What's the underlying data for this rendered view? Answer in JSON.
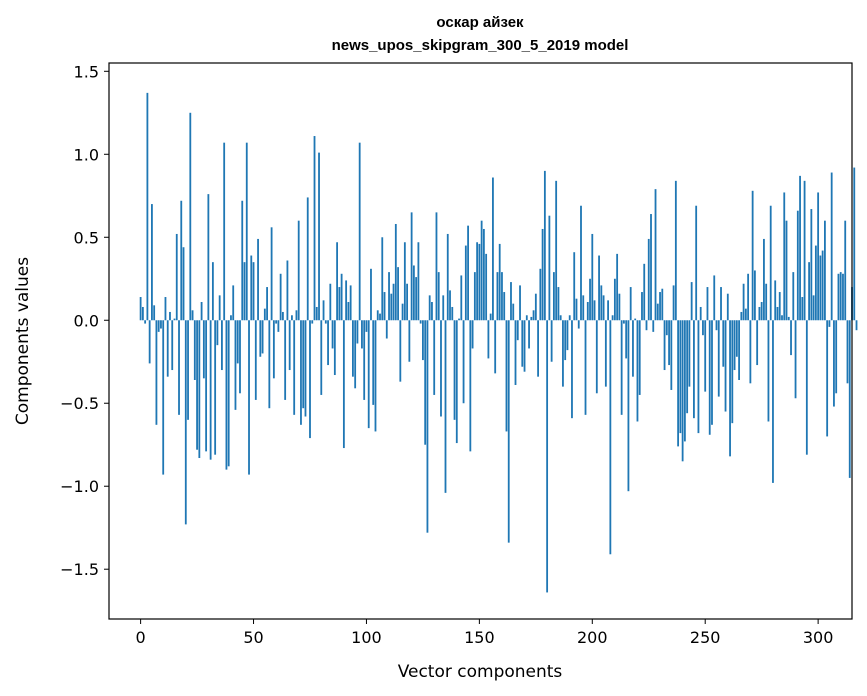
{
  "chart_data": {
    "type": "bar",
    "title_line1": "оскар айзек",
    "title_line2": "news_upos_skipgram_300_5_2019 model",
    "xlabel": "Vector components",
    "ylabel": "Components values",
    "xlim": [
      -14,
      315
    ],
    "ylim": [
      -1.8,
      1.55
    ],
    "x_ticks": [
      0,
      50,
      100,
      150,
      200,
      250,
      300
    ],
    "y_ticks": [
      -1.5,
      -1.0,
      -0.5,
      0.0,
      0.5,
      1.0,
      1.5
    ],
    "y_tick_labels": [
      "−1.5",
      "−1.0",
      "−0.5",
      "0.0",
      "0.5",
      "1.0",
      "1.5"
    ],
    "grid": false,
    "bar_color": "#1f77b4",
    "values": [
      0.14,
      0.08,
      -0.02,
      1.37,
      -0.26,
      0.7,
      0.09,
      -0.63,
      -0.07,
      -0.05,
      -0.93,
      0.14,
      -0.34,
      0.05,
      -0.3,
      0.01,
      0.52,
      -0.57,
      0.72,
      0.44,
      -1.23,
      -0.6,
      1.25,
      0.06,
      -0.36,
      -0.78,
      -0.83,
      0.11,
      -0.35,
      -0.79,
      0.76,
      -0.84,
      0.35,
      -0.81,
      -0.15,
      0.15,
      -0.3,
      1.07,
      -0.9,
      -0.88,
      0.03,
      0.21,
      -0.54,
      -0.26,
      -0.44,
      0.72,
      0.35,
      1.07,
      -0.93,
      0.39,
      0.35,
      -0.48,
      0.49,
      -0.22,
      -0.2,
      0.07,
      0.2,
      -0.53,
      0.56,
      -0.35,
      -0.02,
      -0.07,
      0.28,
      0.05,
      -0.48,
      0.36,
      -0.3,
      0.03,
      -0.57,
      0.06,
      0.6,
      -0.63,
      -0.53,
      -0.58,
      0.74,
      -0.71,
      -0.02,
      1.11,
      0.08,
      1.01,
      -0.45,
      0.12,
      -0.02,
      -0.27,
      0.22,
      -0.17,
      -0.33,
      0.47,
      0.2,
      0.28,
      -0.77,
      0.24,
      0.11,
      0.21,
      -0.34,
      -0.41,
      -0.14,
      1.07,
      -0.17,
      -0.48,
      -0.07,
      -0.65,
      0.31,
      -0.51,
      -0.67,
      0.06,
      0.04,
      0.5,
      0.17,
      -0.11,
      0.29,
      0.16,
      0.22,
      0.58,
      0.32,
      -0.37,
      0.1,
      0.47,
      0.22,
      -0.25,
      0.65,
      0.33,
      0.26,
      0.47,
      -0.02,
      -0.24,
      -0.75,
      -1.28,
      0.15,
      0.11,
      -0.45,
      0.65,
      0.29,
      -0.58,
      0.15,
      -1.04,
      0.52,
      0.18,
      0.08,
      -0.6,
      -0.74,
      0.01,
      0.27,
      -0.5,
      0.45,
      0.57,
      -0.79,
      -0.17,
      0.29,
      0.47,
      0.46,
      0.6,
      0.55,
      0.4,
      -0.23,
      0.04,
      0.86,
      -0.32,
      0.29,
      0.46,
      0.29,
      0.17,
      -0.67,
      -1.34,
      0.23,
      0.1,
      -0.39,
      -0.12,
      0.21,
      -0.28,
      -0.31,
      0.03,
      -0.17,
      0.02,
      0.06,
      0.16,
      -0.34,
      0.31,
      0.55,
      0.9,
      -1.64,
      0.63,
      -0.25,
      0.29,
      0.84,
      0.2,
      0.03,
      -0.4,
      -0.24,
      -0.18,
      0.03,
      -0.59,
      0.41,
      0.13,
      -0.05,
      0.69,
      0.15,
      -0.57,
      0.11,
      0.25,
      0.52,
      0.12,
      -0.44,
      0.39,
      0.21,
      0.15,
      -0.4,
      0.12,
      -1.41,
      0.03,
      0.25,
      0.4,
      0.16,
      -0.57,
      -0.02,
      -0.23,
      -1.03,
      0.2,
      -0.34,
      0.01,
      -0.61,
      -0.45,
      0.17,
      0.34,
      -0.06,
      0.49,
      0.64,
      -0.07,
      0.79,
      0.1,
      0.17,
      0.19,
      -0.3,
      -0.09,
      -0.27,
      -0.42,
      0.21,
      0.84,
      -0.76,
      -0.68,
      -0.85,
      -0.73,
      -0.56,
      -0.4,
      0.23,
      -0.59,
      0.69,
      -0.68,
      0.08,
      -0.09,
      -0.43,
      0.2,
      -0.69,
      -0.63,
      0.27,
      -0.06,
      -0.46,
      0.2,
      -0.28,
      -0.55,
      0.16,
      -0.82,
      -0.62,
      -0.3,
      -0.22,
      -0.36,
      0.05,
      0.22,
      0.07,
      0.28,
      -0.38,
      0.78,
      0.3,
      -0.27,
      0.08,
      0.11,
      0.49,
      0.22,
      -0.61,
      0.69,
      -0.98,
      0.24,
      0.08,
      0.17,
      0.03,
      0.77,
      0.6,
      0.02,
      -0.21,
      0.29,
      -0.47,
      0.66,
      0.87,
      0.14,
      0.84,
      -0.81,
      0.35,
      0.67,
      0.15,
      0.45,
      0.77,
      0.39,
      0.42,
      0.6,
      -0.7,
      -0.04,
      0.89,
      -0.52,
      -0.44,
      0.28,
      0.29,
      0.28,
      0.6,
      -0.38,
      -0.95,
      0.2,
      0.92,
      -0.06
    ]
  }
}
